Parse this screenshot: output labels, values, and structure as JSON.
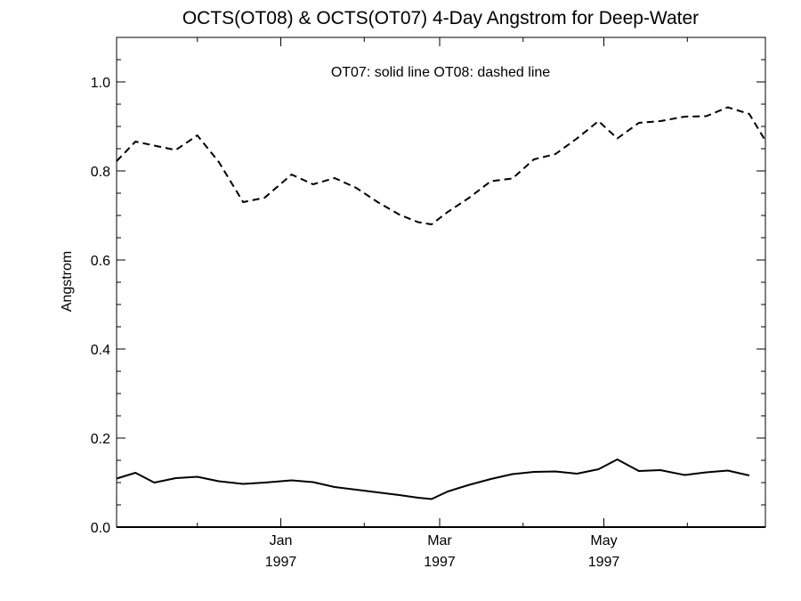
{
  "chart_data": {
    "type": "line",
    "title": "OCTS(OT08) & OCTS(OT07) 4-Day Angstrom for Deep-Water",
    "ylabel": "Angstrom",
    "xlabel": "",
    "annotation": "OT07: solid line   OT08: dashed line",
    "ylim": [
      0.0,
      1.1
    ],
    "xlim": [
      "1996-11-01",
      "1997-06-30"
    ],
    "y_ticks": [
      "0.0",
      "0.2",
      "0.4",
      "0.6",
      "0.8",
      "1.0"
    ],
    "x_ticks": [
      {
        "date": "1997-01-01",
        "month": "Jan",
        "year": "1997"
      },
      {
        "date": "1997-03-01",
        "month": "Mar",
        "year": "1997"
      },
      {
        "date": "1997-05-01",
        "month": "May",
        "year": "1997"
      }
    ],
    "grid": false,
    "series": [
      {
        "name": "OT07",
        "style": "solid",
        "color": "#000000",
        "points": [
          [
            "1996-11-01",
            0.109
          ],
          [
            "1996-11-08",
            0.122
          ],
          [
            "1996-11-15",
            0.1
          ],
          [
            "1996-11-23",
            0.11
          ],
          [
            "1996-12-01",
            0.113
          ],
          [
            "1996-12-09",
            0.103
          ],
          [
            "1996-12-18",
            0.097
          ],
          [
            "1996-12-26",
            0.1
          ],
          [
            "1997-01-05",
            0.105
          ],
          [
            "1997-01-13",
            0.101
          ],
          [
            "1997-01-21",
            0.09
          ],
          [
            "1997-01-29",
            0.084
          ],
          [
            "1997-02-06",
            0.078
          ],
          [
            "1997-02-14",
            0.072
          ],
          [
            "1997-02-21",
            0.066
          ],
          [
            "1997-02-26",
            0.063
          ],
          [
            "1997-03-04",
            0.08
          ],
          [
            "1997-03-12",
            0.095
          ],
          [
            "1997-03-20",
            0.108
          ],
          [
            "1997-03-28",
            0.119
          ],
          [
            "1997-04-05",
            0.124
          ],
          [
            "1997-04-13",
            0.125
          ],
          [
            "1997-04-21",
            0.12
          ],
          [
            "1997-04-29",
            0.13
          ],
          [
            "1997-05-06",
            0.152
          ],
          [
            "1997-05-14",
            0.126
          ],
          [
            "1997-05-22",
            0.128
          ],
          [
            "1997-05-31",
            0.117
          ],
          [
            "1997-06-08",
            0.123
          ],
          [
            "1997-06-16",
            0.127
          ],
          [
            "1997-06-24",
            0.116
          ]
        ]
      },
      {
        "name": "OT08",
        "style": "dashed",
        "color": "#000000",
        "points": [
          [
            "1996-11-01",
            0.822
          ],
          [
            "1996-11-08",
            0.866
          ],
          [
            "1996-11-15",
            0.857
          ],
          [
            "1996-11-23",
            0.847
          ],
          [
            "1996-12-01",
            0.88
          ],
          [
            "1996-12-09",
            0.82
          ],
          [
            "1996-12-18",
            0.73
          ],
          [
            "1996-12-26",
            0.74
          ],
          [
            "1997-01-05",
            0.792
          ],
          [
            "1997-01-13",
            0.77
          ],
          [
            "1997-01-21",
            0.784
          ],
          [
            "1997-01-29",
            0.762
          ],
          [
            "1997-02-06",
            0.73
          ],
          [
            "1997-02-14",
            0.702
          ],
          [
            "1997-02-21",
            0.685
          ],
          [
            "1997-02-26",
            0.68
          ],
          [
            "1997-03-04",
            0.708
          ],
          [
            "1997-03-12",
            0.74
          ],
          [
            "1997-03-20",
            0.777
          ],
          [
            "1997-03-28",
            0.783
          ],
          [
            "1997-04-05",
            0.826
          ],
          [
            "1997-04-13",
            0.838
          ],
          [
            "1997-04-21",
            0.873
          ],
          [
            "1997-04-29",
            0.912
          ],
          [
            "1997-05-06",
            0.873
          ],
          [
            "1997-05-14",
            0.908
          ],
          [
            "1997-05-22",
            0.912
          ],
          [
            "1997-05-31",
            0.922
          ],
          [
            "1997-06-08",
            0.923
          ],
          [
            "1997-06-16",
            0.943
          ],
          [
            "1997-06-24",
            0.928
          ],
          [
            "1997-06-30",
            0.868
          ]
        ]
      }
    ]
  }
}
